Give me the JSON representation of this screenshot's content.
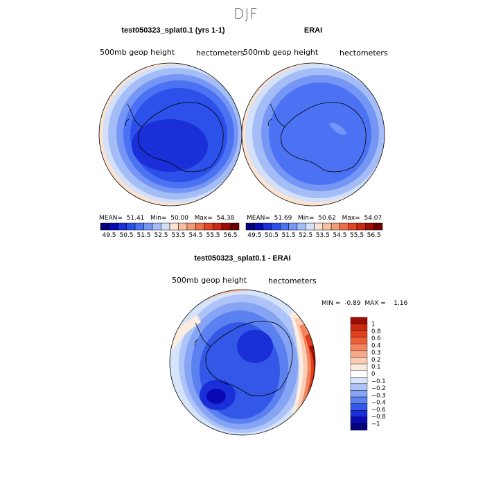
{
  "page_title": "DJF",
  "chart_data": [
    {
      "type": "heatmap",
      "projection": "south polar stereographic",
      "title": "test050323_splat0.1 (yrs 1-1)",
      "field_label": "500mb geop height",
      "units": "hectometers",
      "stats": {
        "mean_label": "MEAN=",
        "mean": "51.41",
        "min_label": "Min=",
        "min": "50.00",
        "max_label": "Max=",
        "max": "54.38"
      },
      "colorbar_ticks": [
        "49.5",
        "50.5",
        "51.5",
        "52.5",
        "53.5",
        "54.5",
        "55.5",
        "56.5"
      ],
      "colorbar_colors": [
        "#04037a",
        "#0a0ab5",
        "#1a2fd8",
        "#2c50ea",
        "#4a72f2",
        "#7596f5",
        "#a5bdf7",
        "#d3e0fa",
        "#fbe3d2",
        "#f6c0a6",
        "#f19a78",
        "#ea704b",
        "#df4424",
        "#c92b12",
        "#9e0d03",
        "#6a0101"
      ]
    },
    {
      "type": "heatmap",
      "projection": "south polar stereographic",
      "title": "ERAI",
      "field_label": "500mb geop height",
      "units": "hectometers",
      "stats": {
        "mean_label": "MEAN=",
        "mean": "51.69",
        "min_label": "Min=",
        "min": "50.62",
        "max_label": "Max=",
        "max": "54.07"
      },
      "colorbar_ticks": [
        "49.5",
        "50.5",
        "51.5",
        "52.5",
        "53.5",
        "54.5",
        "55.5",
        "56.5"
      ],
      "colorbar_colors": [
        "#04037a",
        "#0a0ab5",
        "#1a2fd8",
        "#2c50ea",
        "#4a72f2",
        "#7596f5",
        "#a5bdf7",
        "#d3e0fa",
        "#fbe3d2",
        "#f6c0a6",
        "#f19a78",
        "#ea704b",
        "#df4424",
        "#c92b12",
        "#9e0d03",
        "#6a0101"
      ]
    },
    {
      "type": "heatmap",
      "projection": "south polar stereographic",
      "title": "test050323_splat0.1 - ERAI",
      "field_label": "500mb geop height",
      "units": "hectometers",
      "stats": {
        "min_label": "MIN =",
        "min": "-0.89",
        "max_label": "MAX =",
        "max": "1.16"
      },
      "colorbar_ticks": [
        "1",
        "0.8",
        "0.6",
        "0.4",
        "0.3",
        "0.2",
        "0.1",
        "0",
        "−0.1",
        "−0.2",
        "−0.3",
        "−0.4",
        "−0.6",
        "−0.8",
        "−1"
      ],
      "colorbar_colors": [
        "#9e0d03",
        "#c92b12",
        "#e03f1d",
        "#ec5e36",
        "#f3855e",
        "#f6a887",
        "#f9ccb3",
        "#fbecdf",
        "#ffffff",
        "#d5e3fb",
        "#aec4f8",
        "#86a4f4",
        "#5b80ef",
        "#3357e6",
        "#1a2fd8",
        "#0a0ab5",
        "#04037a"
      ]
    }
  ]
}
